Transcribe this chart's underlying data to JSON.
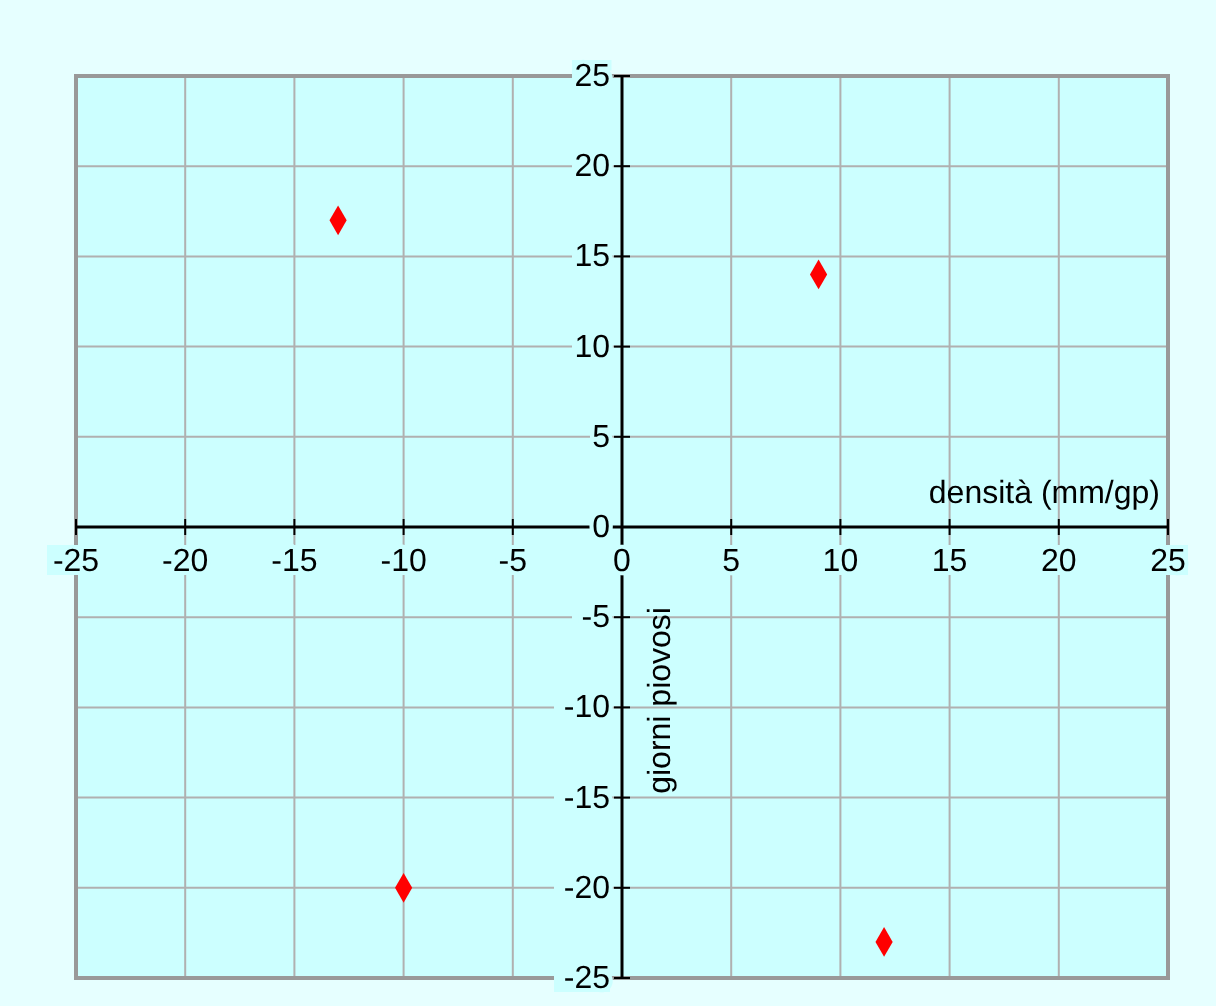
{
  "chart_data": {
    "type": "scatter",
    "xlabel": "densità (mm/gp)",
    "ylabel": "giorni piovosi",
    "x": [
      -13,
      9,
      -10,
      12
    ],
    "values": [
      17,
      14,
      -20,
      -23
    ],
    "color": "#ff0000",
    "marker": "diamond",
    "xlim": [
      -25,
      25
    ],
    "ylim": [
      -25,
      25
    ],
    "xticks": [
      -25,
      -20,
      -15,
      -10,
      -5,
      0,
      5,
      10,
      15,
      20,
      25
    ],
    "yticks": [
      -25,
      -20,
      -15,
      -10,
      -5,
      0,
      5,
      10,
      15,
      20,
      25
    ],
    "grid": true
  }
}
